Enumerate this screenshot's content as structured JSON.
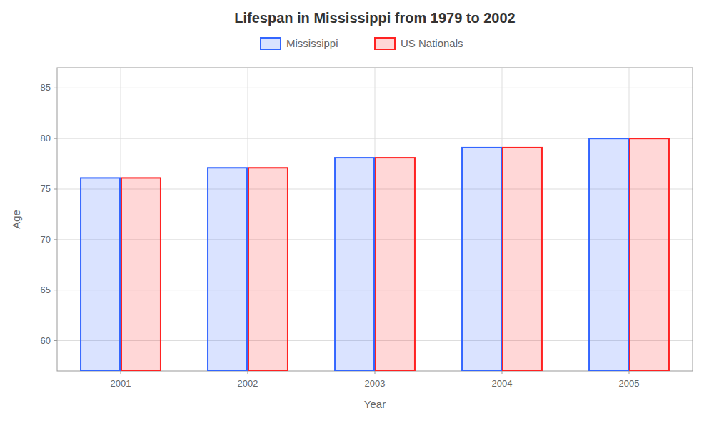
{
  "chart_data": {
    "type": "bar",
    "title": "Lifespan in Mississippi from 1979 to 2002",
    "xlabel": "Year",
    "ylabel": "Age",
    "categories": [
      "2001",
      "2002",
      "2003",
      "2004",
      "2005"
    ],
    "series": [
      {
        "name": "Mississippi",
        "color": "#3366ff",
        "values": [
          76.1,
          77.1,
          78.1,
          79.1,
          80.0
        ]
      },
      {
        "name": "US Nationals",
        "color": "#ff2222",
        "values": [
          76.1,
          77.1,
          78.1,
          79.1,
          80.0
        ]
      }
    ],
    "ylim": [
      57,
      87
    ],
    "yticks": [
      60,
      65,
      70,
      75,
      80,
      85
    ],
    "grid": true,
    "legend": "top"
  }
}
